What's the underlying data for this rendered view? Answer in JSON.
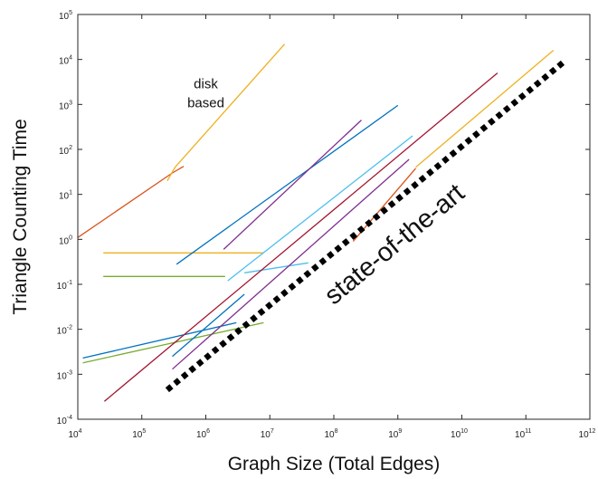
{
  "chart_data": {
    "type": "line",
    "title": "",
    "xlabel": "Graph Size (Total Edges)",
    "ylabel": "Triangle Counting Time",
    "xscale": "log",
    "yscale": "log",
    "xlim": [
      10000,
      1000000000000
    ],
    "ylim": [
      0.0001,
      100000
    ],
    "grid": false,
    "x_ticks": [
      {
        "base": "10",
        "exp": "4"
      },
      {
        "base": "10",
        "exp": "5"
      },
      {
        "base": "10",
        "exp": "6"
      },
      {
        "base": "10",
        "exp": "7"
      },
      {
        "base": "10",
        "exp": "8"
      },
      {
        "base": "10",
        "exp": "9"
      },
      {
        "base": "10",
        "exp": "10"
      },
      {
        "base": "10",
        "exp": "11"
      },
      {
        "base": "10",
        "exp": "12"
      }
    ],
    "y_ticks": [
      {
        "base": "10",
        "exp": "-4"
      },
      {
        "base": "10",
        "exp": "-3"
      },
      {
        "base": "10",
        "exp": "-2"
      },
      {
        "base": "10",
        "exp": "-1"
      },
      {
        "base": "10",
        "exp": "0"
      },
      {
        "base": "10",
        "exp": "1"
      },
      {
        "base": "10",
        "exp": "2"
      },
      {
        "base": "10",
        "exp": "3"
      },
      {
        "base": "10",
        "exp": "4"
      },
      {
        "base": "10",
        "exp": "5"
      }
    ],
    "series": [
      {
        "color": "#d95319",
        "x": [
          10000,
          300000,
          450000
        ],
        "y": [
          1.1,
          30,
          42
        ]
      },
      {
        "color": "#edb120",
        "x": [
          250000,
          330000,
          17000000
        ],
        "y": [
          20,
          40,
          22000
        ]
      },
      {
        "color": "#edb120",
        "x": [
          25000,
          8000000
        ],
        "y": [
          0.5,
          0.5
        ]
      },
      {
        "color": "#77ac30",
        "x": [
          25000,
          2000000
        ],
        "y": [
          0.15,
          0.15
        ]
      },
      {
        "color": "#0072bd",
        "x": [
          350000,
          1000000000
        ],
        "y": [
          0.28,
          950
        ]
      },
      {
        "color": "#7e2f8e",
        "x": [
          1900000,
          270000000
        ],
        "y": [
          0.6,
          450
        ]
      },
      {
        "color": "#4dbeee",
        "x": [
          2200000,
          1700000000
        ],
        "y": [
          0.12,
          200
        ]
      },
      {
        "color": "#4dbeee",
        "x": [
          4000000,
          40000000
        ],
        "y": [
          0.18,
          0.3
        ]
      },
      {
        "color": "#0072bd",
        "x": [
          12000,
          3000000
        ],
        "y": [
          0.0023,
          0.014
        ]
      },
      {
        "color": "#77ac30",
        "x": [
          12000,
          8000000
        ],
        "y": [
          0.0018,
          0.014
        ]
      },
      {
        "color": "#a2142f",
        "x": [
          26000,
          36000000000
        ],
        "y": [
          0.00025,
          5000
        ]
      },
      {
        "color": "#7e2f8e",
        "x": [
          300000,
          1500000000
        ],
        "y": [
          0.0013,
          60
        ]
      },
      {
        "color": "#0072bd",
        "x": [
          300000,
          4000000
        ],
        "y": [
          0.0025,
          0.06
        ]
      },
      {
        "color": "#d95319",
        "x": [
          200000000,
          1900000000
        ],
        "y": [
          0.9,
          38
        ]
      },
      {
        "color": "#edb120",
        "x": [
          1900000000,
          270000000000
        ],
        "y": [
          40,
          16000
        ]
      }
    ],
    "reference_line": {
      "label": "state-of-the-art",
      "color": "#000000",
      "style": "dotted",
      "x": [
        250000,
        400000000000
      ],
      "y": [
        0.00045,
        9000
      ]
    },
    "annotations": [
      {
        "lines": [
          "disk",
          "based"
        ],
        "x": 1000000,
        "y": 1000
      }
    ]
  }
}
